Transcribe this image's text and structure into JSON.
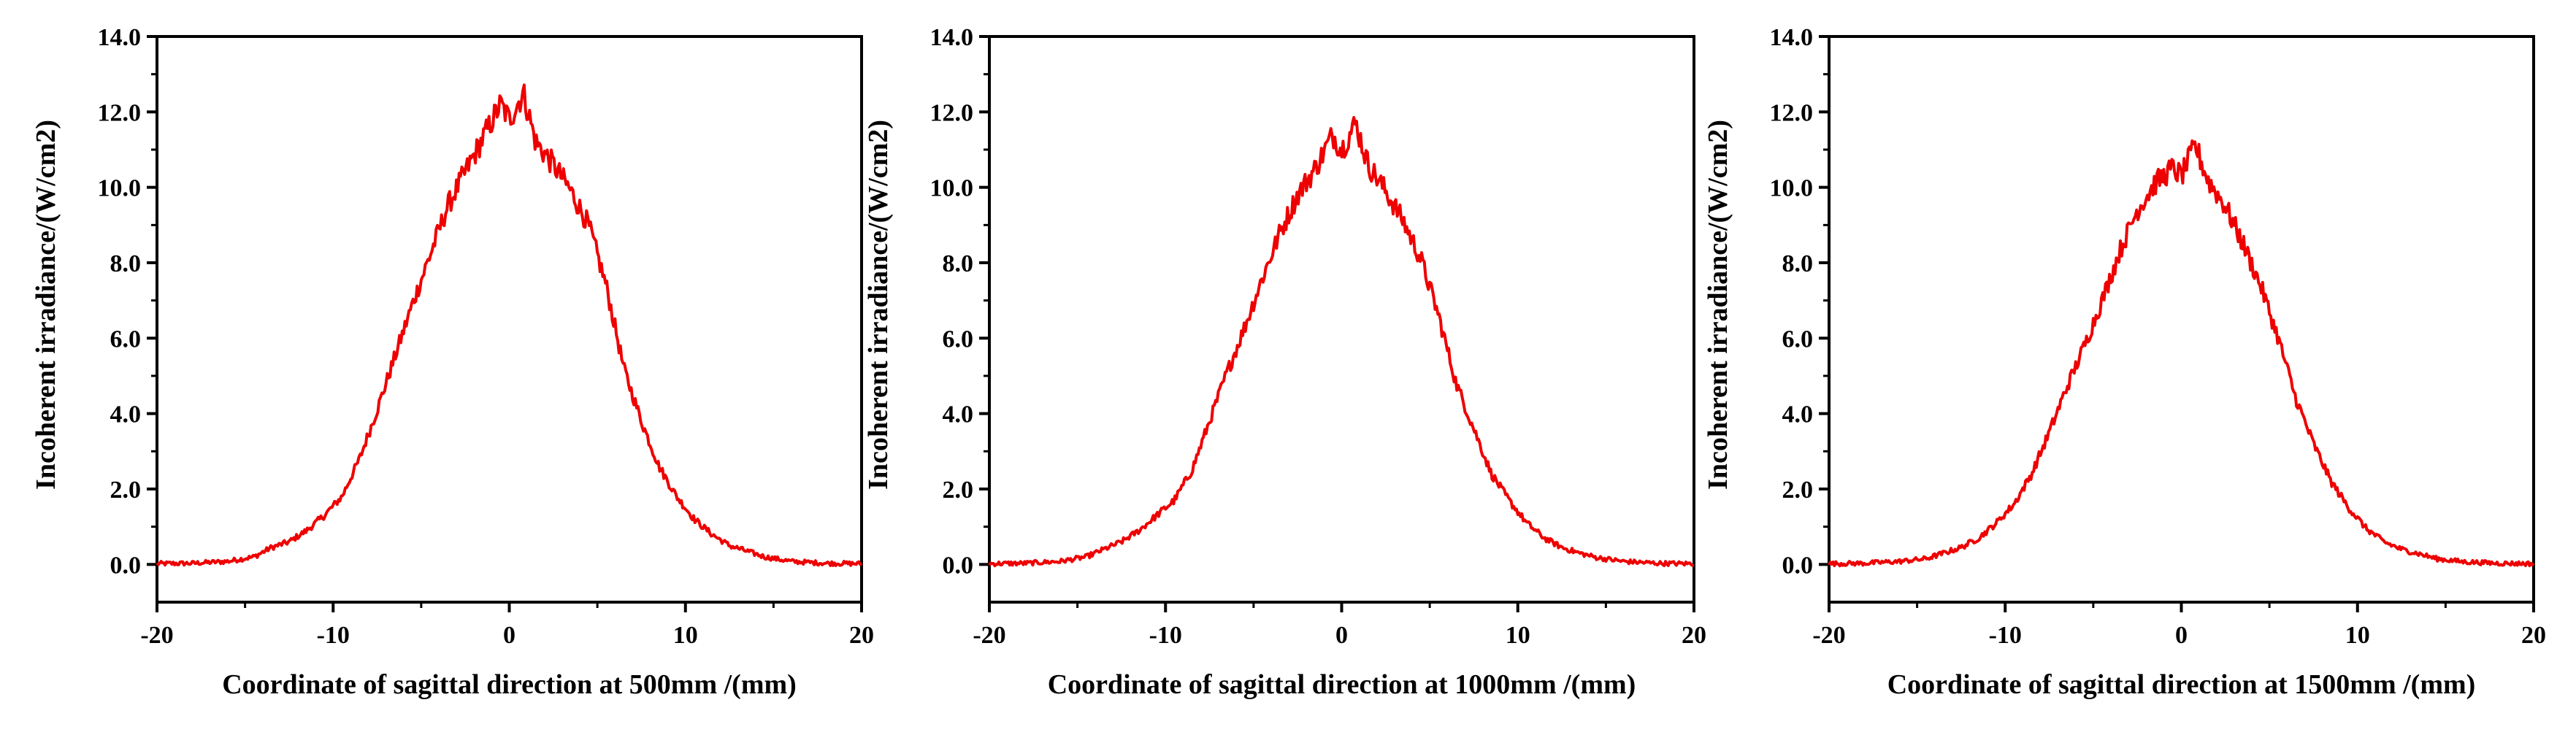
{
  "chart_data": [
    {
      "type": "line",
      "title": "",
      "xlabel": "Coordinate of sagittal direction at 500mm /(mm)",
      "ylabel": "Incoherent irradiance/(W/cm2)",
      "xlim": [
        -20,
        20
      ],
      "ylim": [
        -1,
        14
      ],
      "xticks": [
        -20,
        -10,
        0,
        10,
        20
      ],
      "xtick_labels": [
        "-20",
        "-10",
        "0",
        "10",
        "20"
      ],
      "yticks": [
        0,
        2,
        4,
        6,
        8,
        10,
        12,
        14
      ],
      "ytick_labels": [
        "0.0",
        "2.0",
        "4.0",
        "6.0",
        "8.0",
        "10.0",
        "12.0",
        "14.0"
      ],
      "grid": false,
      "color": "#ee0000",
      "series": [
        {
          "name": "500mm",
          "x": [
            -20,
            -18,
            -16,
            -14.5,
            -13.5,
            -12.5,
            -11.5,
            -10.5,
            -9.5,
            -8.5,
            -7.5,
            -6.5,
            -5.5,
            -4.5,
            -3.5,
            -2.5,
            -1.5,
            -0.5,
            0,
            0.8,
            1.5,
            2.5,
            3.5,
            4.5,
            5.5,
            6.5,
            7.5,
            8.5,
            9.5,
            10.5,
            11.5,
            12.5,
            13.5,
            14.5,
            16,
            18,
            20
          ],
          "y": [
            0.02,
            0.03,
            0.08,
            0.2,
            0.45,
            0.6,
            0.9,
            1.3,
            1.8,
            2.8,
            4.1,
            5.5,
            6.9,
            8.2,
            9.5,
            10.4,
            11.3,
            12.2,
            11.8,
            12.5,
            11.2,
            10.6,
            9.9,
            9.0,
            7.4,
            5.2,
            3.8,
            2.6,
            1.8,
            1.2,
            0.8,
            0.5,
            0.35,
            0.2,
            0.08,
            0.03,
            0.02
          ]
        }
      ]
    },
    {
      "type": "line",
      "title": "",
      "xlabel": "Coordinate of sagittal direction at 1000mm /(mm)",
      "ylabel": "Incoherent irradiance/(W/cm2)",
      "xlim": [
        -20,
        20
      ],
      "ylim": [
        -1,
        14
      ],
      "xticks": [
        -20,
        -10,
        0,
        10,
        20
      ],
      "xtick_labels": [
        "-20",
        "-10",
        "0",
        "10",
        "20"
      ],
      "yticks": [
        0,
        2,
        4,
        6,
        8,
        10,
        12,
        14
      ],
      "ytick_labels": [
        "0.0",
        "2.0",
        "4.0",
        "6.0",
        "8.0",
        "10.0",
        "12.0",
        "14.0"
      ],
      "grid": false,
      "color": "#ee0000",
      "series": [
        {
          "name": "1000mm",
          "x": [
            -20,
            -18,
            -16,
            -14.5,
            -13.5,
            -12.5,
            -11.5,
            -10.5,
            -9.5,
            -8.5,
            -7.5,
            -6.5,
            -5.5,
            -4.5,
            -3.5,
            -2.5,
            -1.5,
            -0.5,
            0,
            0.8,
            1.5,
            2.5,
            3.5,
            4.5,
            5.5,
            6.5,
            7.5,
            8.5,
            9.5,
            10.5,
            11.5,
            12.5,
            13.5,
            14.5,
            16,
            18,
            20
          ],
          "y": [
            0.02,
            0.03,
            0.08,
            0.2,
            0.4,
            0.6,
            0.9,
            1.3,
            1.7,
            2.5,
            3.8,
            5.1,
            6.3,
            7.6,
            8.8,
            9.8,
            10.5,
            11.4,
            11.0,
            11.7,
            10.6,
            9.9,
            9.1,
            8.1,
            6.6,
            4.8,
            3.6,
            2.4,
            1.7,
            1.1,
            0.7,
            0.45,
            0.3,
            0.18,
            0.08,
            0.03,
            0.02
          ]
        }
      ]
    },
    {
      "type": "line",
      "title": "",
      "xlabel": "Coordinate of sagittal direction at 1500mm /(mm)",
      "ylabel": "Incoherent irradiance/(W/cm2)",
      "xlim": [
        -20,
        20
      ],
      "ylim": [
        -1,
        14
      ],
      "xticks": [
        -20,
        -10,
        0,
        10,
        20
      ],
      "xtick_labels": [
        "-20",
        "-10",
        "0",
        "10",
        "20"
      ],
      "yticks": [
        0,
        2,
        4,
        6,
        8,
        10,
        12,
        14
      ],
      "ytick_labels": [
        "0.0",
        "2.0",
        "4.0",
        "6.0",
        "8.0",
        "10.0",
        "12.0",
        "14.0"
      ],
      "grid": false,
      "color": "#ee0000",
      "series": [
        {
          "name": "1500mm",
          "x": [
            -20,
            -18,
            -16,
            -14.5,
            -13.5,
            -12.5,
            -11.5,
            -10.5,
            -9.5,
            -8.5,
            -7.5,
            -6.5,
            -5.5,
            -4.5,
            -3.5,
            -2.5,
            -1.5,
            -0.5,
            0,
            0.8,
            1.5,
            2.5,
            3.5,
            4.5,
            5.5,
            6.5,
            7.5,
            8.5,
            9.5,
            10.5,
            11.5,
            12.5,
            13.5,
            14.5,
            16,
            18,
            20
          ],
          "y": [
            0.02,
            0.03,
            0.08,
            0.15,
            0.3,
            0.45,
            0.7,
            1.1,
            1.6,
            2.4,
            3.5,
            4.7,
            5.8,
            7.0,
            8.3,
            9.4,
            10.1,
            10.5,
            10.3,
            11.1,
            10.2,
            9.5,
            8.5,
            7.4,
            6.0,
            4.4,
            3.2,
            2.2,
            1.5,
            0.95,
            0.6,
            0.4,
            0.28,
            0.15,
            0.07,
            0.03,
            0.02
          ]
        }
      ]
    }
  ]
}
